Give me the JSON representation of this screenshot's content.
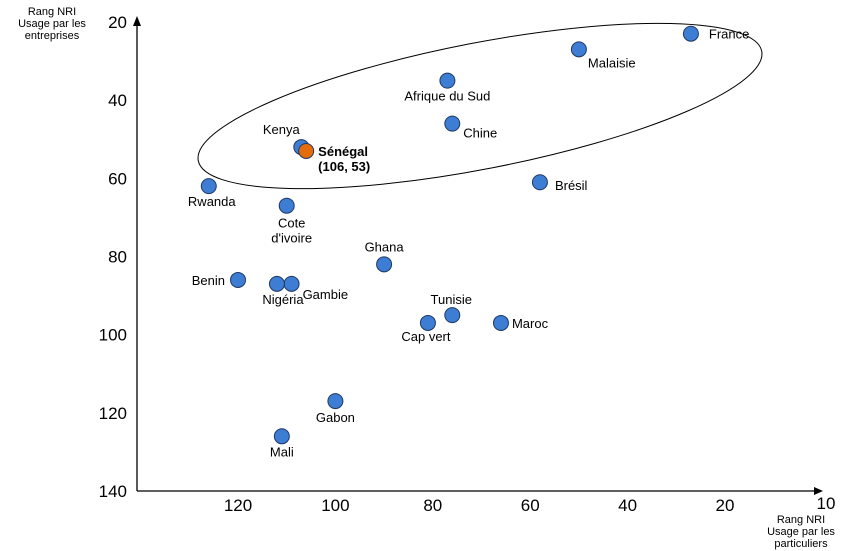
{
  "chart_data": {
    "type": "scatter",
    "title": "",
    "ylabel": [
      "Rang NRI",
      "Usage par les",
      "entreprises"
    ],
    "xlabel": [
      "Rang NRI",
      "Usage par les",
      "particuliers"
    ],
    "xlim": [
      140,
      10
    ],
    "ylim": [
      20,
      140
    ],
    "x_reversed": true,
    "y_reversed": true,
    "x_ticks": [
      120,
      100,
      80,
      60,
      40,
      20,
      10
    ],
    "y_ticks": [
      20,
      40,
      60,
      80,
      100,
      120,
      140
    ],
    "grid": false,
    "highlight_color": "#E46C0A",
    "point_color": "#3D7DD4",
    "points": [
      {
        "label": [
          "France"
        ],
        "x": 27,
        "y": 23
      },
      {
        "label": [
          "Malaisie"
        ],
        "x": 50,
        "y": 27
      },
      {
        "label": [
          "Afrique du Sud"
        ],
        "x": 77,
        "y": 35
      },
      {
        "label": [
          "Chine"
        ],
        "x": 76,
        "y": 46
      },
      {
        "label": [
          "Kenya"
        ],
        "x": 107,
        "y": 52
      },
      {
        "label": [
          "Sénégal",
          "(106, 53)"
        ],
        "x": 106,
        "y": 53,
        "highlight": true
      },
      {
        "label": [
          "Rwanda"
        ],
        "x": 126,
        "y": 62
      },
      {
        "label": [
          "Cote",
          "d'ivoire"
        ],
        "x": 110,
        "y": 67
      },
      {
        "label": [
          "Brésil"
        ],
        "x": 58,
        "y": 61
      },
      {
        "label": [
          "Ghana"
        ],
        "x": 90,
        "y": 82
      },
      {
        "label": [
          "Benin"
        ],
        "x": 120,
        "y": 86
      },
      {
        "label": [
          "Gambie"
        ],
        "x": 109,
        "y": 87
      },
      {
        "label": [
          "Nigéria"
        ],
        "x": 112,
        "y": 87
      },
      {
        "label": [
          "Tunisie"
        ],
        "x": 76,
        "y": 95
      },
      {
        "label": [
          "Cap vert"
        ],
        "x": 81,
        "y": 97
      },
      {
        "label": [
          "Maroc"
        ],
        "x": 66,
        "y": 97
      },
      {
        "label": [
          "Gabon"
        ],
        "x": 100,
        "y": 117
      },
      {
        "label": [
          "Mali"
        ],
        "x": 111,
        "y": 126
      }
    ]
  }
}
